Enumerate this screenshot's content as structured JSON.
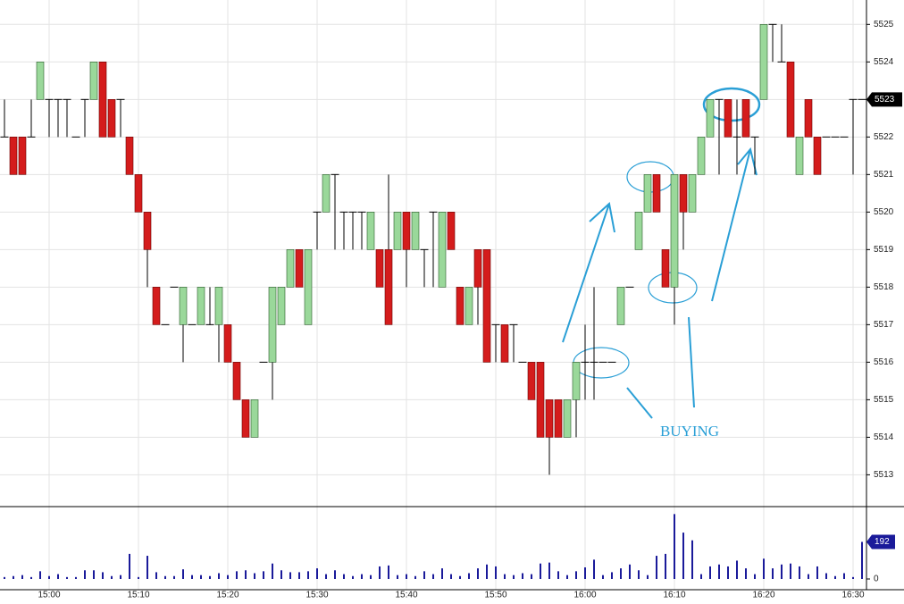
{
  "chart_data": [
    {
      "type": "candlestick",
      "categories": [
        null,
        null,
        null,
        null,
        null,
        "15:00",
        null,
        null,
        null,
        null,
        null,
        null,
        null,
        null,
        null,
        "15:10",
        null,
        null,
        null,
        null,
        null,
        null,
        null,
        null,
        null,
        "15:20",
        null,
        null,
        null,
        null,
        null,
        null,
        null,
        null,
        null,
        "15:30",
        null,
        null,
        null,
        null,
        null,
        null,
        null,
        null,
        null,
        "15:40",
        null,
        null,
        null,
        null,
        null,
        null,
        null,
        null,
        null,
        "15:50",
        null,
        null,
        null,
        null,
        null,
        null,
        null,
        null,
        null,
        "16:00",
        null,
        null,
        null,
        null,
        null,
        null,
        null,
        null,
        null,
        "16:10",
        null,
        null,
        null,
        null,
        null,
        null,
        null,
        null,
        null,
        "16:20",
        null,
        null,
        null,
        null,
        null,
        null,
        null,
        null,
        null,
        "16:30",
        null
      ],
      "open": [
        5522,
        5522,
        5522,
        5522,
        5523,
        5523,
        5523,
        5523,
        5522,
        5523,
        5523,
        5524,
        5523,
        5523,
        5522,
        5521,
        5520,
        5518,
        5517,
        5518,
        5517,
        5517,
        5517,
        5517,
        5517,
        5517,
        5516,
        5515,
        5514,
        5516,
        5516,
        5517,
        5518,
        5519,
        5517,
        5520,
        5520,
        5521,
        5520,
        5520,
        5520,
        5519,
        5519,
        5519,
        5519,
        5520,
        5519,
        5519,
        5520,
        5518,
        5520,
        5518,
        5517,
        5519,
        5519,
        5517,
        5517,
        5517,
        5516,
        5516,
        5516,
        5515,
        5515,
        5514,
        5515,
        5516,
        5516,
        5516,
        5516,
        5517,
        5518,
        5519,
        5520,
        5521,
        5519,
        5518,
        5521,
        5520,
        5521,
        5522,
        5523,
        5523,
        5522,
        5523,
        5522,
        5523,
        5525,
        5524,
        5524,
        5521,
        5523,
        5522,
        5522,
        5522,
        5522,
        5523,
        5523
      ],
      "high": [
        5523,
        5522,
        5522,
        5523,
        5524,
        5523,
        5523,
        5523,
        5522,
        5523,
        5524,
        5524,
        5523,
        5523,
        5522,
        5521,
        5520,
        5518,
        5517,
        5518,
        5518,
        5517,
        5518,
        5518,
        5518,
        5517,
        5516,
        5515,
        5515,
        5516,
        5518,
        5518,
        5519,
        5519,
        5519,
        5520,
        5521,
        5521,
        5520,
        5520,
        5520,
        5520,
        5519,
        5521,
        5520,
        5520,
        5520,
        5519,
        5520,
        5520,
        5520,
        5518,
        5518,
        5519,
        5519,
        5517,
        5517,
        5517,
        5516,
        5516,
        5516,
        5515,
        5515,
        5515,
        5516,
        5517,
        5518,
        5516,
        5516,
        5518,
        5518,
        5520,
        5521,
        5521,
        5519,
        5521,
        5521,
        5521,
        5522,
        5523,
        5523,
        5523,
        5523,
        5523,
        5522,
        5525,
        5525,
        5525,
        5524,
        5522,
        5523,
        5522,
        5522,
        5522,
        5522,
        5523,
        5523
      ],
      "low": [
        5522,
        5521,
        5521,
        5522,
        5523,
        5522,
        5522,
        5522,
        5522,
        5522,
        5523,
        5522,
        5522,
        5522,
        5521,
        5520,
        5518,
        5517,
        5517,
        5518,
        5516,
        5517,
        5517,
        5517,
        5516,
        5516,
        5515,
        5514,
        5514,
        5516,
        5515,
        5517,
        5518,
        5518,
        5517,
        5519,
        5520,
        5519,
        5519,
        5519,
        5519,
        5519,
        5518,
        5517,
        5519,
        5518,
        5519,
        5518,
        5518,
        5518,
        5519,
        5517,
        5517,
        5517,
        5516,
        5516,
        5516,
        5516,
        5516,
        5515,
        5514,
        5513,
        5514,
        5514,
        5514,
        5515,
        5515,
        5516,
        5516,
        5517,
        5518,
        5519,
        5520,
        5520,
        5518,
        5517,
        5519,
        5520,
        5521,
        5522,
        5521,
        5522,
        5521,
        5522,
        5521,
        5523,
        5524,
        5524,
        5522,
        5521,
        5522,
        5521,
        5522,
        5522,
        5522,
        5521,
        5523
      ],
      "close": [
        5522,
        5521,
        5521,
        5522,
        5524,
        5523,
        5523,
        5523,
        5522,
        5523,
        5524,
        5522,
        5522,
        5523,
        5521,
        5520,
        5519,
        5517,
        5517,
        5518,
        5518,
        5517,
        5518,
        5517,
        5518,
        5516,
        5515,
        5514,
        5515,
        5516,
        5518,
        5518,
        5519,
        5518,
        5519,
        5520,
        5521,
        5521,
        5520,
        5520,
        5520,
        5520,
        5518,
        5517,
        5520,
        5519,
        5520,
        5519,
        5520,
        5520,
        5519,
        5517,
        5518,
        5518,
        5516,
        5517,
        5516,
        5517,
        5516,
        5515,
        5514,
        5514,
        5514,
        5515,
        5516,
        5516,
        5516,
        5516,
        5516,
        5518,
        5518,
        5520,
        5521,
        5520,
        5518,
        5521,
        5520,
        5521,
        5522,
        5523,
        5523,
        5522,
        5522,
        5522,
        5522,
        5525,
        5525,
        5524,
        5522,
        5522,
        5522,
        5521,
        5522,
        5522,
        5522,
        5523,
        5523
      ],
      "up_color": "#9ad89a",
      "down_color": "#d41c1c",
      "ylim": [
        5512.2,
        5525.65
      ],
      "yticks": [
        5513,
        5514,
        5515,
        5516,
        5517,
        5518,
        5519,
        5520,
        5521,
        5522,
        5523,
        5524,
        5525
      ],
      "grid": true,
      "annotations": [
        "BUYING"
      ]
    },
    {
      "type": "bar",
      "values": [
        10,
        15,
        20,
        10,
        40,
        15,
        25,
        10,
        10,
        45,
        45,
        35,
        15,
        20,
        130,
        10,
        120,
        35,
        15,
        15,
        50,
        20,
        20,
        15,
        30,
        20,
        40,
        45,
        30,
        40,
        80,
        45,
        35,
        35,
        40,
        55,
        25,
        45,
        25,
        15,
        25,
        20,
        65,
        70,
        20,
        25,
        15,
        40,
        25,
        55,
        25,
        15,
        30,
        55,
        75,
        65,
        25,
        20,
        30,
        25,
        80,
        85,
        40,
        20,
        40,
        60,
        100,
        20,
        35,
        55,
        75,
        45,
        20,
        120,
        130,
        336,
        240,
        200,
        25,
        65,
        75,
        65,
        95,
        55,
        25,
        105,
        55,
        75,
        80,
        65,
        25,
        65,
        30,
        15,
        30,
        10,
        192
      ],
      "color": "#1a1a9a",
      "ylim": [
        0,
        370
      ],
      "yticks": [
        0
      ]
    }
  ]
}
